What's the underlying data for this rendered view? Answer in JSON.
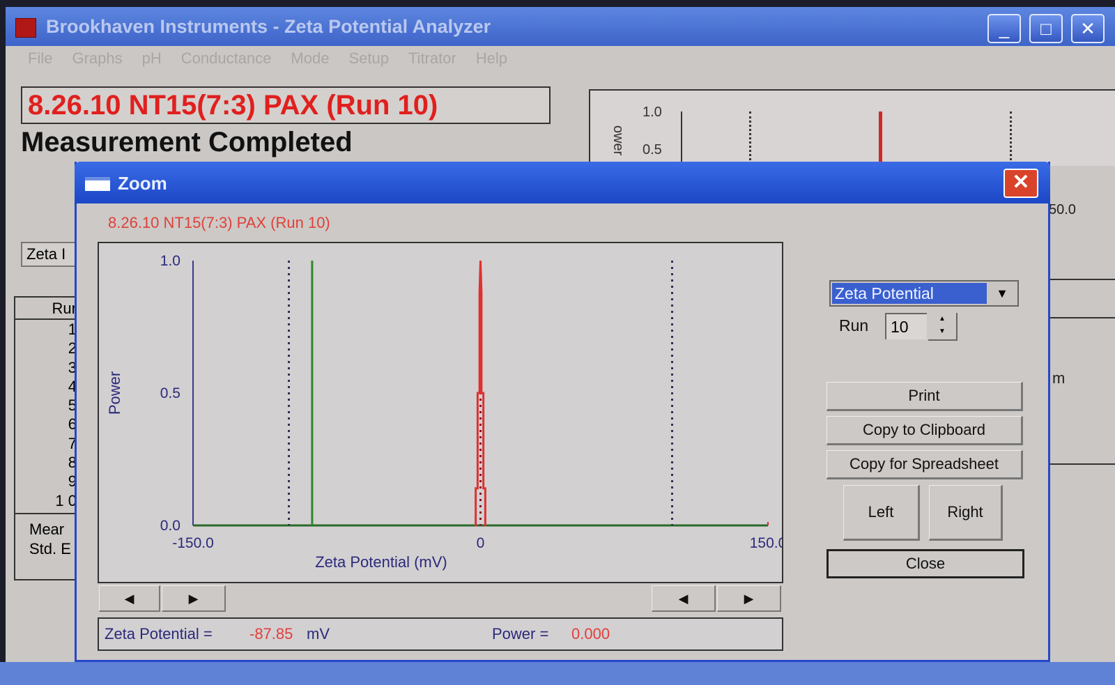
{
  "app": {
    "title": "Brookhaven Instruments - Zeta Potential Analyzer",
    "window_buttons": [
      "minimize",
      "maximize",
      "close"
    ]
  },
  "menu": [
    "File",
    "Graphs",
    "pH",
    "Conductance",
    "Mode",
    "Setup",
    "Titrator",
    "Help"
  ],
  "main": {
    "run_title": "8.26.10 NT15(7:3) PAX (Run 10)",
    "status": "Measurement Completed",
    "zeta_field": "Zeta I",
    "table": {
      "header": "Rur",
      "rows": [
        "1",
        "2",
        "3",
        "4",
        "5",
        "6",
        "7",
        "8",
        "9",
        "1 0"
      ],
      "mean": "Mear",
      "std": "Std. E"
    },
    "bg_graph": {
      "ylabel": "ower",
      "yticks": [
        "1.0",
        "0.5"
      ],
      "x_end": "50.0",
      "unit_fragment": "m"
    }
  },
  "zoom": {
    "title": "Zoom",
    "chart_title": "8.26.10 NT15(7:3) PAX (Run 10)",
    "dropdown": "Zeta Potential",
    "run_label": "Run",
    "run_value": "10",
    "buttons": {
      "print": "Print",
      "copy_clipboard": "Copy to Clipboard",
      "copy_spreadsheet": "Copy for Spreadsheet",
      "left": "Left",
      "right": "Right",
      "close": "Close"
    },
    "readout": {
      "zeta_label": "Zeta Potential =",
      "zeta_value": "-87.85",
      "zeta_unit": "mV",
      "power_label": "Power =",
      "power_value": "0.000"
    }
  },
  "chart_data": {
    "type": "line",
    "xlabel": "Zeta Potential (mV)",
    "ylabel": "Power",
    "xlim": [
      -150,
      150
    ],
    "ylim": [
      0,
      1
    ],
    "xticks": [
      "-150.0",
      "0",
      "150.0"
    ],
    "yticks": [
      "0.0",
      "0.5",
      "1.0"
    ],
    "series": [
      {
        "color": "#e03030",
        "x": [
          -3,
          -2.5,
          -2.5,
          -1.5,
          -1.5,
          -0.5,
          -0.5,
          0,
          0.5,
          0.5,
          1.5,
          1.5,
          2.5,
          2.5,
          3
        ],
        "y": [
          0,
          0,
          0.14,
          0.14,
          0.5,
          0.5,
          0.88,
          1.0,
          0.88,
          0.5,
          0.5,
          0.14,
          0.14,
          0,
          0
        ]
      }
    ],
    "markers": [
      {
        "x": -100,
        "style": "dotted",
        "color": "#303050"
      },
      {
        "x": 100,
        "style": "dotted",
        "color": "#303050"
      },
      {
        "x": 0,
        "style": "dotted",
        "color": "#8a1020"
      }
    ],
    "cursor": {
      "x": -87.85,
      "color": "#2a8a2a"
    },
    "grid": false
  }
}
